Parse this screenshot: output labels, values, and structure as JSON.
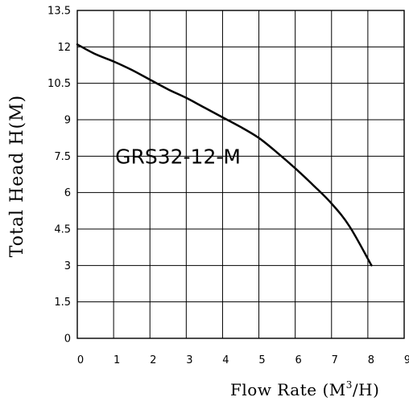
{
  "chart_data": {
    "type": "line",
    "title": "",
    "xlabel": "Flow Rate (M³/H)",
    "xlabel_parts": {
      "main": "Flow Rate (M",
      "sup": "3",
      "tail": "/H)"
    },
    "ylabel": "Total Head H(M)",
    "xlim": [
      0,
      9
    ],
    "ylim": [
      0,
      13.5
    ],
    "x_ticks": [
      "0",
      "1",
      "2",
      "3",
      "4",
      "5",
      "6",
      "7",
      "8",
      "9"
    ],
    "y_ticks": [
      "0",
      "1.5",
      "3",
      "4.5",
      "6",
      "7.5",
      "9",
      "10.5",
      "12",
      "13.5"
    ],
    "grid": true,
    "annotation": {
      "text": "GRS32-12-M",
      "x": 1.0,
      "y": 7.5
    },
    "series": [
      {
        "x": [
          0,
          0.5,
          1.0,
          1.5,
          2.0,
          2.5,
          3.0,
          3.5,
          4.0,
          4.5,
          5.0,
          5.5,
          6.0,
          6.5,
          7.0,
          7.5,
          8.1
        ],
        "y": [
          12.1,
          11.7,
          11.4,
          11.05,
          10.65,
          10.25,
          9.9,
          9.5,
          9.1,
          8.7,
          8.25,
          7.65,
          7.0,
          6.3,
          5.55,
          4.6,
          3.0
        ]
      }
    ]
  }
}
